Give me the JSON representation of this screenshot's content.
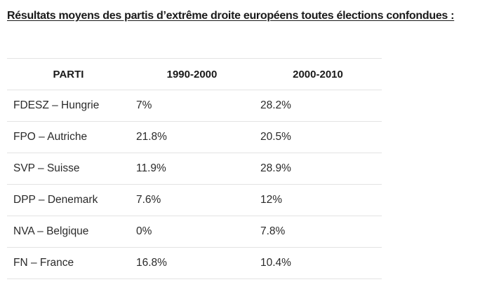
{
  "heading": "Résultats moyens des partis d’extrême droite européens toutes élections confondues :",
  "table": {
    "headers": [
      "PARTI",
      "1990-2000",
      "2000-2010"
    ],
    "rows": [
      [
        "FDESZ – Hungrie",
        "7%",
        "28.2%"
      ],
      [
        "FPO – Autriche",
        "21.8%",
        "20.5%"
      ],
      [
        "SVP – Suisse",
        "11.9%",
        "28.9%"
      ],
      [
        "DPP – Denemark",
        "7.6%",
        "12%"
      ],
      [
        "NVA – Belgique",
        "0%",
        "7.8%"
      ],
      [
        "FN – France",
        "16.8%",
        "10.4%"
      ]
    ]
  }
}
